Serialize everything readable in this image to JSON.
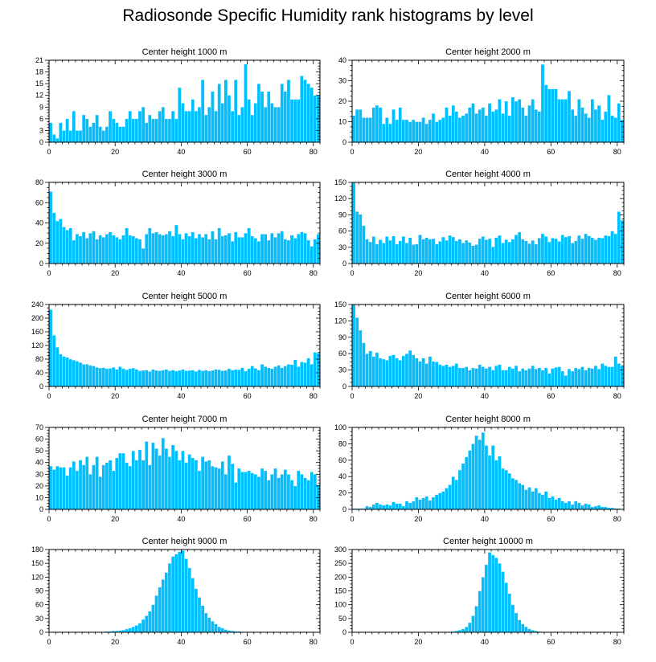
{
  "title": "Radiosonde Specific Humidity rank histograms by level",
  "colors": {
    "bar": "#00bfff",
    "axis": "#000000"
  },
  "chart_data": [
    {
      "type": "bar",
      "title": "Center height 1000 m",
      "xlabel": "",
      "ylabel": "",
      "xlim": [
        0,
        82
      ],
      "ylim": [
        0,
        21
      ],
      "xticks": [
        0,
        20,
        40,
        60,
        80
      ],
      "yticks": [
        0,
        3,
        6,
        9,
        12,
        15,
        18,
        21
      ],
      "values": [
        5,
        2,
        1,
        5,
        3,
        6,
        3,
        8,
        3,
        3,
        7,
        6,
        4,
        5,
        7,
        4,
        3,
        4,
        8,
        6,
        5,
        4,
        4,
        6,
        8,
        6,
        6,
        8,
        9,
        5,
        7,
        6,
        6,
        8,
        9,
        6,
        6,
        8,
        6,
        14,
        10,
        8,
        8,
        11,
        8,
        9,
        16,
        7,
        9,
        13,
        8,
        15,
        10,
        16,
        12,
        8,
        16,
        7,
        9,
        20,
        11,
        7,
        10,
        15,
        13,
        9,
        13,
        10,
        9,
        9,
        15,
        13,
        16,
        11,
        11,
        11,
        17,
        16,
        15,
        14,
        12,
        12
      ]
    },
    {
      "type": "bar",
      "title": "Center height 2000 m",
      "xlabel": "",
      "ylabel": "",
      "xlim": [
        0,
        82
      ],
      "ylim": [
        0,
        40
      ],
      "xticks": [
        0,
        20,
        40,
        60,
        80
      ],
      "yticks": [
        0,
        10,
        20,
        30,
        40
      ],
      "values": [
        13,
        16,
        16,
        12,
        12,
        12,
        17,
        18,
        17,
        9,
        12,
        9,
        16,
        11,
        17,
        11,
        11,
        10,
        11,
        10,
        10,
        12,
        9,
        11,
        14,
        10,
        11,
        12,
        17,
        13,
        18,
        15,
        12,
        13,
        14,
        17,
        19,
        14,
        16,
        17,
        13,
        19,
        15,
        16,
        21,
        14,
        20,
        13,
        22,
        20,
        21,
        17,
        13,
        18,
        21,
        16,
        15,
        38,
        28,
        26,
        26,
        26,
        21,
        21,
        21,
        25,
        16,
        13,
        21,
        17,
        14,
        12,
        21,
        16,
        18,
        11,
        15,
        23,
        13,
        12,
        19,
        11
      ]
    },
    {
      "type": "bar",
      "title": "Center height 3000 m",
      "xlabel": "",
      "ylabel": "",
      "xlim": [
        0,
        82
      ],
      "ylim": [
        0,
        80
      ],
      "xticks": [
        0,
        20,
        40,
        60,
        80
      ],
      "yticks": [
        0,
        20,
        40,
        60,
        80
      ],
      "values": [
        71,
        50,
        42,
        44,
        36,
        33,
        35,
        23,
        29,
        27,
        31,
        25,
        30,
        32,
        24,
        28,
        26,
        29,
        31,
        28,
        26,
        24,
        28,
        35,
        28,
        27,
        25,
        24,
        15,
        29,
        35,
        30,
        31,
        29,
        28,
        29,
        32,
        27,
        38,
        29,
        24,
        30,
        27,
        31,
        25,
        29,
        26,
        29,
        24,
        32,
        24,
        35,
        27,
        28,
        30,
        22,
        31,
        26,
        26,
        30,
        35,
        27,
        25,
        22,
        29,
        29,
        23,
        30,
        26,
        30,
        32,
        24,
        23,
        28,
        25,
        29,
        31,
        30,
        23,
        17,
        24,
        29
      ]
    },
    {
      "type": "bar",
      "title": "Center height 4000 m",
      "xlabel": "",
      "ylabel": "",
      "xlim": [
        0,
        82
      ],
      "ylim": [
        0,
        150
      ],
      "xticks": [
        0,
        20,
        40,
        60,
        80
      ],
      "yticks": [
        0,
        30,
        60,
        90,
        120,
        150
      ],
      "values": [
        150,
        96,
        91,
        70,
        45,
        40,
        50,
        36,
        44,
        38,
        50,
        43,
        51,
        36,
        42,
        50,
        38,
        48,
        35,
        36,
        53,
        45,
        48,
        45,
        46,
        36,
        41,
        49,
        43,
        52,
        49,
        42,
        45,
        38,
        43,
        39,
        33,
        35,
        46,
        50,
        44,
        46,
        31,
        48,
        52,
        38,
        44,
        40,
        45,
        53,
        58,
        45,
        42,
        37,
        43,
        36,
        47,
        55,
        50,
        40,
        47,
        46,
        41,
        53,
        49,
        51,
        38,
        42,
        52,
        46,
        55,
        51,
        48,
        44,
        48,
        47,
        52,
        51,
        60,
        55,
        96,
        80
      ]
    },
    {
      "type": "bar",
      "title": "Center height 5000 m",
      "xlabel": "",
      "ylabel": "",
      "xlim": [
        0,
        82
      ],
      "ylim": [
        0,
        240
      ],
      "xticks": [
        0,
        20,
        40,
        60,
        80
      ],
      "yticks": [
        0,
        40,
        80,
        120,
        160,
        200,
        240
      ],
      "values": [
        225,
        150,
        115,
        95,
        88,
        85,
        80,
        77,
        74,
        70,
        65,
        65,
        62,
        60,
        56,
        54,
        55,
        52,
        53,
        56,
        50,
        58,
        52,
        49,
        52,
        54,
        50,
        46,
        47,
        48,
        44,
        50,
        47,
        46,
        48,
        50,
        46,
        48,
        45,
        47,
        50,
        46,
        47,
        48,
        44,
        49,
        46,
        48,
        45,
        47,
        50,
        49,
        46,
        47,
        52,
        48,
        50,
        49,
        55,
        45,
        52,
        60,
        53,
        48,
        65,
        58,
        55,
        52,
        58,
        62,
        55,
        60,
        65,
        64,
        78,
        58,
        72,
        70,
        83,
        65,
        100,
        98
      ]
    },
    {
      "type": "bar",
      "title": "Center height 6000 m",
      "xlabel": "",
      "ylabel": "",
      "xlim": [
        0,
        82
      ],
      "ylim": [
        0,
        150
      ],
      "xticks": [
        0,
        20,
        40,
        60,
        80
      ],
      "yticks": [
        0,
        30,
        60,
        90,
        120,
        150
      ],
      "values": [
        150,
        126,
        103,
        80,
        60,
        65,
        55,
        62,
        52,
        50,
        48,
        56,
        58,
        52,
        48,
        56,
        60,
        66,
        58,
        52,
        46,
        52,
        42,
        55,
        46,
        45,
        40,
        38,
        40,
        36,
        38,
        42,
        34,
        34,
        36,
        30,
        34,
        33,
        40,
        36,
        33,
        36,
        30,
        38,
        40,
        30,
        30,
        36,
        33,
        38,
        28,
        33,
        30,
        33,
        38,
        32,
        34,
        30,
        34,
        24,
        33,
        35,
        36,
        28,
        20,
        32,
        28,
        34,
        32,
        36,
        30,
        34,
        33,
        38,
        32,
        42,
        38,
        36,
        36,
        55,
        42,
        38
      ]
    },
    {
      "type": "bar",
      "title": "Center height 7000 m",
      "xlabel": "",
      "ylabel": "",
      "xlim": [
        0,
        82
      ],
      "ylim": [
        0,
        70
      ],
      "xticks": [
        0,
        20,
        40,
        60,
        80
      ],
      "yticks": [
        0,
        10,
        20,
        30,
        40,
        50,
        60,
        70
      ],
      "values": [
        37,
        34,
        37,
        36,
        36,
        29,
        36,
        41,
        33,
        42,
        38,
        45,
        30,
        38,
        45,
        28,
        38,
        40,
        42,
        33,
        44,
        48,
        48,
        40,
        37,
        50,
        42,
        51,
        42,
        58,
        38,
        57,
        52,
        46,
        61,
        52,
        45,
        55,
        50,
        42,
        50,
        40,
        47,
        44,
        42,
        33,
        45,
        41,
        42,
        37,
        36,
        35,
        41,
        30,
        46,
        39,
        23,
        35,
        32,
        32,
        33,
        31,
        30,
        28,
        35,
        33,
        25,
        30,
        35,
        27,
        30,
        34,
        30,
        25,
        20,
        33,
        30,
        27,
        25,
        32,
        30,
        21
      ]
    },
    {
      "type": "bar",
      "title": "Center height 8000 m",
      "xlabel": "",
      "ylabel": "",
      "xlim": [
        0,
        82
      ],
      "ylim": [
        0,
        100
      ],
      "xticks": [
        0,
        20,
        40,
        60,
        80
      ],
      "yticks": [
        0,
        20,
        40,
        60,
        80,
        100
      ],
      "values": [
        1,
        1,
        1,
        1,
        4,
        3,
        6,
        8,
        6,
        5,
        6,
        5,
        9,
        7,
        7,
        4,
        10,
        8,
        10,
        15,
        12,
        14,
        16,
        11,
        15,
        18,
        20,
        22,
        26,
        30,
        40,
        36,
        48,
        56,
        64,
        72,
        80,
        90,
        85,
        94,
        78,
        66,
        78,
        60,
        65,
        50,
        48,
        44,
        38,
        36,
        32,
        30,
        24,
        27,
        22,
        26,
        20,
        18,
        22,
        14,
        16,
        12,
        14,
        10,
        8,
        10,
        6,
        10,
        8,
        5,
        7,
        6,
        3,
        4,
        5,
        3,
        3,
        2,
        2,
        1,
        1,
        0
      ]
    },
    {
      "type": "bar",
      "title": "Center height 9000 m",
      "xlabel": "",
      "ylabel": "",
      "xlim": [
        0,
        82
      ],
      "ylim": [
        0,
        180
      ],
      "xticks": [
        0,
        20,
        40,
        60,
        80
      ],
      "yticks": [
        0,
        30,
        60,
        90,
        120,
        150,
        180
      ],
      "values": [
        0,
        0,
        0,
        0,
        0,
        0,
        0,
        0,
        0,
        0,
        0,
        0,
        0,
        1,
        1,
        1,
        1,
        2,
        2,
        3,
        3,
        4,
        5,
        7,
        9,
        12,
        15,
        20,
        28,
        36,
        46,
        60,
        80,
        98,
        115,
        130,
        150,
        165,
        170,
        175,
        178,
        160,
        140,
        118,
        95,
        76,
        58,
        42,
        32,
        24,
        18,
        12,
        9,
        6,
        4,
        3,
        2,
        2,
        1,
        1,
        1,
        0,
        0,
        0,
        0,
        0,
        0,
        0,
        0,
        0,
        0,
        0,
        0,
        0,
        0,
        0,
        0,
        0,
        0,
        0,
        0,
        0
      ]
    },
    {
      "type": "bar",
      "title": "Center height 10000 m",
      "xlabel": "",
      "ylabel": "",
      "xlim": [
        0,
        82
      ],
      "ylim": [
        0,
        300
      ],
      "xticks": [
        0,
        20,
        40,
        60,
        80
      ],
      "yticks": [
        0,
        50,
        100,
        150,
        200,
        250,
        300
      ],
      "values": [
        0,
        0,
        0,
        0,
        0,
        0,
        0,
        0,
        0,
        0,
        0,
        0,
        0,
        0,
        0,
        0,
        0,
        0,
        0,
        0,
        0,
        0,
        0,
        0,
        0,
        0,
        1,
        1,
        1,
        2,
        3,
        5,
        8,
        12,
        20,
        35,
        60,
        95,
        150,
        200,
        245,
        290,
        280,
        270,
        250,
        220,
        180,
        140,
        100,
        70,
        45,
        30,
        20,
        12,
        8,
        5,
        3,
        2,
        1,
        1,
        0,
        0,
        0,
        0,
        0,
        0,
        0,
        0,
        0,
        0,
        0,
        0,
        0,
        0,
        0,
        0,
        0,
        0,
        0,
        0,
        0,
        0
      ]
    }
  ]
}
